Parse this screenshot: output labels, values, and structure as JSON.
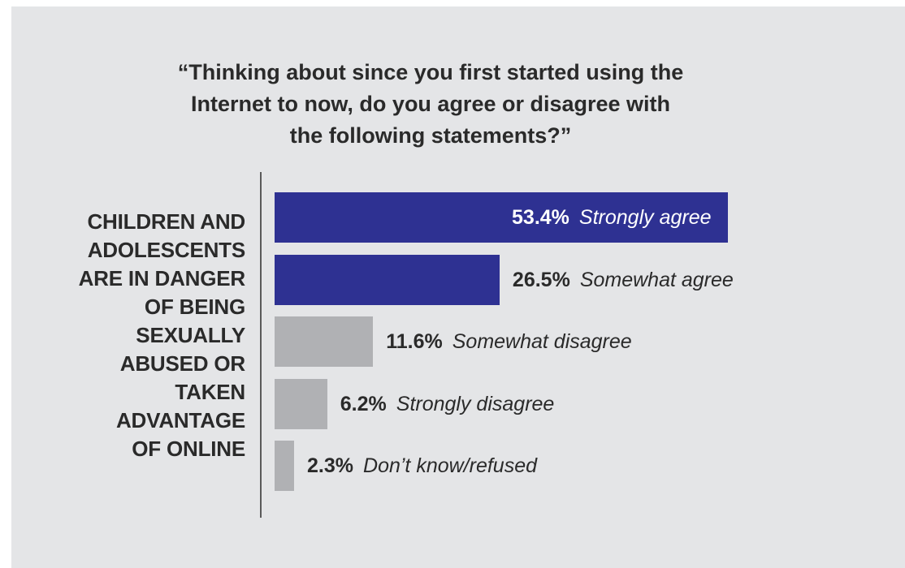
{
  "colors": {
    "background": "#e4e5e7",
    "agree": "#2e3192",
    "disagree": "#b0b1b4",
    "text": "#2a2a2a"
  },
  "chart_data": {
    "type": "bar",
    "orientation": "horizontal",
    "title": "“Thinking about since you first started using the\nInternet to now, do you agree or disagree with\nthe following statements?”",
    "row_label": "CHILDREN AND\nADOLESCENTS\nARE IN DANGER\nOF BEING\nSEXUALLY\nABUSED OR\nTAKEN\nADVANTAGE\nOF ONLINE",
    "categories": [
      "Strongly agree",
      "Somewhat agree",
      "Somewhat disagree",
      "Strongly disagree",
      "Don’t know/refused"
    ],
    "values": [
      53.4,
      26.5,
      11.6,
      6.2,
      2.3
    ],
    "value_labels": [
      "53.4%",
      "26.5%",
      "11.6%",
      "6.2%",
      "2.3%"
    ],
    "bar_colors": [
      "#2e3192",
      "#2e3192",
      "#b0b1b4",
      "#b0b1b4",
      "#b0b1b4"
    ],
    "grid": false
  }
}
